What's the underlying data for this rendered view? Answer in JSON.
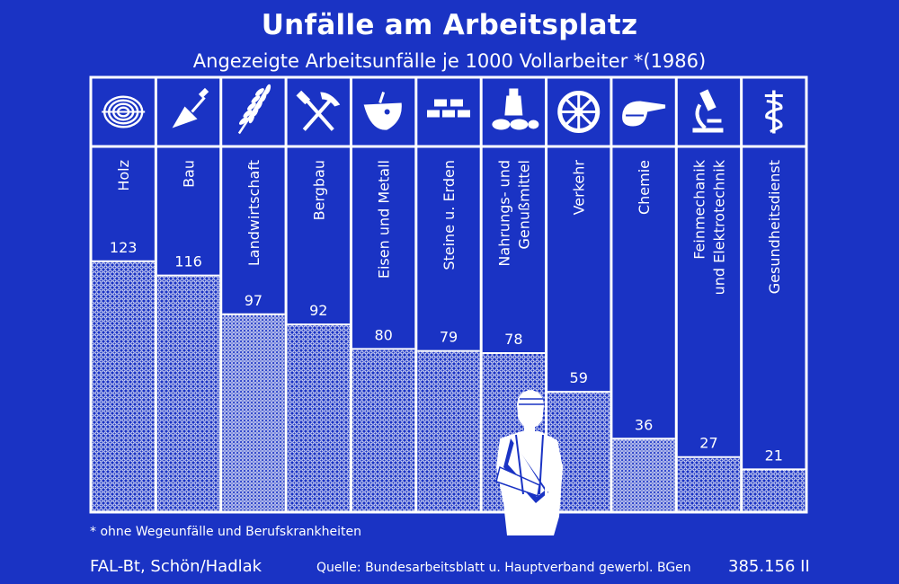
{
  "title": "Unfälle am Arbeitsplatz",
  "subtitle": "Angezeigte Arbeitsunfälle je 1000 Vollarbeiter *(1986)",
  "footnote": "* ohne Wegeunfälle und Berufskrankheiten",
  "footer": {
    "author": "FAL-Bt, Schön/Hadlak",
    "source": "Quelle: Bundesarbeitsblatt u. Hauptverband gewerbl. BGen",
    "code": "385.156 II"
  },
  "colors": {
    "background": "#1a33c4",
    "foreground": "#ffffff"
  },
  "chart_data": {
    "type": "bar",
    "title": "Unfälle am Arbeitsplatz",
    "subtitle": "Angezeigte Arbeitsunfälle je 1000 Vollarbeiter *(1986)",
    "categories": [
      [
        "Holz"
      ],
      [
        "Bau"
      ],
      [
        "Landwirtschaft"
      ],
      [
        "Bergbau"
      ],
      [
        "Eisen und Metall"
      ],
      [
        "Steine u. Erden"
      ],
      [
        "Nahrungs- und",
        "Genußmittel"
      ],
      [
        "Verkehr"
      ],
      [
        "Chemie"
      ],
      [
        "Feinmechanik",
        "und Elektrotechnik"
      ],
      [
        "Gesundheitsdienst"
      ]
    ],
    "values": [
      123,
      116,
      97,
      92,
      80,
      79,
      78,
      59,
      36,
      27,
      21
    ],
    "icons": [
      "wood-rings-icon",
      "trowel-icon",
      "wheat-icon",
      "hammer-pick-icon",
      "ladle-icon",
      "bricks-icon",
      "bread-icon",
      "wheel-icon",
      "flask-icon",
      "microscope-icon",
      "caduceus-icon"
    ],
    "ylim": [
      0,
      160
    ],
    "xlabel": "",
    "ylabel": "",
    "grid": false,
    "legend": "none"
  }
}
